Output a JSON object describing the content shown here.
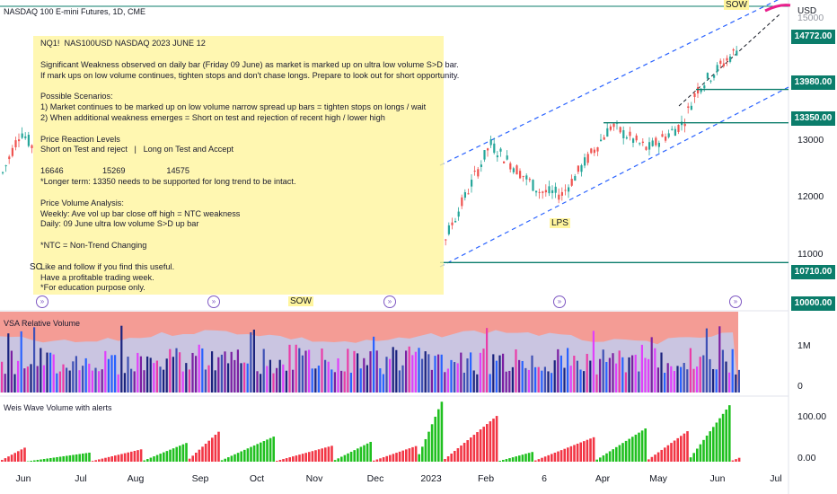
{
  "header": {
    "title": "NASDAQ 100 E-mini Futures, 1D, CME",
    "currency": "USD"
  },
  "note": {
    "lines": [
      "NQ1!  NAS100USD NASDAQ 2023 JUNE 12",
      "",
      "Significant Weakness observed on daily bar (Friday 09 June) as market is marked up on ultra low volume S>D bar.",
      "If mark ups on low volume continues, tighten stops and don't chase longs. Prepare to look out for short opportunity.",
      "",
      "Possible Scenarios:",
      "1) Market continues to be marked up on low volume narrow spread up bars = tighten stops on longs / wait",
      "2) When additional weakness emerges = Short on test and rejection of recent high / lower high",
      "",
      "Price Reaction Levels",
      "Short on Test and reject   |   Long on Test and Accept",
      "",
      "16646                 15269                  14575",
      "*Longer term: 13350 needs to be supported for long trend to be intact.",
      "",
      "Price Volume Analysis:",
      "Weekly: Ave vol up bar close off high = NTC weakness",
      "Daily: 09 June ultra low volume S>D up bar",
      "",
      "*NTC = Non-Trend Changing",
      "",
      "Like and follow if you find this useful.",
      "Have a profitable trading week.",
      "*For education purpose only."
    ]
  },
  "chart_data": [
    {
      "type": "candlestick",
      "title": "NASDAQ 100 E-mini Futures, 1D, CME",
      "x_ticks": [
        "Jun",
        "Jul",
        "Aug",
        "Sep",
        "Oct",
        "Nov",
        "Dec",
        "2023",
        "Feb",
        "6",
        "Apr",
        "May",
        "Jun",
        "Jul"
      ],
      "y_ticks": [
        11000,
        12000,
        13000,
        15000
      ],
      "ylim": [
        9900,
        15500
      ],
      "levels": [
        {
          "label": "14772.00",
          "value": 14772,
          "kind": "last-price"
        },
        {
          "label": "13980.00",
          "value": 13980
        },
        {
          "label": "13350.00",
          "value": 13350
        },
        {
          "label": "10710.00",
          "value": 10710
        },
        {
          "label": "10000.00",
          "value": 10000
        }
      ],
      "annotations": [
        "SC",
        "SOW",
        "LPS",
        "SOW"
      ],
      "colors": {
        "up": "#26a69a",
        "down": "#ef5350",
        "level": "#0b7d6b",
        "channel": "#2962ff"
      }
    },
    {
      "type": "bar",
      "title": "VSA Relative Volume",
      "y_ticks": [
        "1M",
        "0"
      ]
    },
    {
      "type": "bar",
      "title": "Weis Wave Volume with alerts",
      "y_ticks": [
        "100.00",
        "0.00"
      ]
    }
  ]
}
